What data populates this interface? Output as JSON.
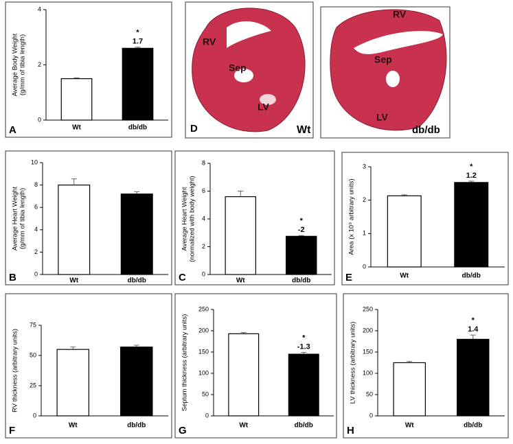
{
  "chart_data": [
    {
      "type": "bar",
      "panel": "A",
      "ylabel": [
        "Average Body Weight",
        "(g/mm of tibia length)"
      ],
      "categories": [
        "Wt",
        "db/db"
      ],
      "values": [
        1.5,
        2.6
      ],
      "errors": [
        0.03,
        0.04
      ],
      "colors": [
        "#ffffff",
        "#000000"
      ],
      "ylim": [
        0,
        4
      ],
      "yticks": [
        0,
        2,
        4
      ],
      "annotations": [
        "*",
        "1.7"
      ]
    },
    {
      "type": "bar",
      "panel": "B",
      "ylabel": [
        "Average Heart Weight",
        "(g/mm of tibia length)"
      ],
      "categories": [
        "Wt",
        "db/db"
      ],
      "values": [
        8.0,
        7.2
      ],
      "errors": [
        0.55,
        0.2
      ],
      "colors": [
        "#ffffff",
        "#000000"
      ],
      "ylim": [
        0,
        10
      ],
      "yticks": [
        0,
        2,
        4,
        6,
        8,
        10
      ],
      "annotations": []
    },
    {
      "type": "bar",
      "panel": "C",
      "ylabel": [
        "Average Heart Weight",
        "(normalized with body weight)"
      ],
      "categories": [
        "Wt",
        "db/db"
      ],
      "values": [
        5.6,
        2.75
      ],
      "errors": [
        0.4,
        0.05
      ],
      "colors": [
        "#ffffff",
        "#000000"
      ],
      "ylim": [
        0,
        8
      ],
      "yticks": [
        0,
        2,
        4,
        6,
        8
      ],
      "annotations": [
        "*",
        "-2"
      ]
    },
    {
      "type": "bar",
      "panel": "E",
      "ylabel": [
        "Area (x 10⁹ arbitrary units)"
      ],
      "categories": [
        "Wt",
        "db/db"
      ],
      "values": [
        2.13,
        2.53
      ],
      "errors": [
        0.03,
        0.04
      ],
      "colors": [
        "#ffffff",
        "#000000"
      ],
      "ylim": [
        0,
        3
      ],
      "yticks": [
        0,
        1,
        2,
        3
      ],
      "annotations": [
        "*",
        "1.2"
      ]
    },
    {
      "type": "bar",
      "panel": "F",
      "ylabel": [
        "RV thickness (arbitrary units)"
      ],
      "categories": [
        "Wt",
        "db/db"
      ],
      "values": [
        55,
        57
      ],
      "errors": [
        2,
        1.5
      ],
      "colors": [
        "#ffffff",
        "#000000"
      ],
      "ylim": [
        0,
        75
      ],
      "yticks": [
        0,
        25,
        50,
        75
      ],
      "annotations": []
    },
    {
      "type": "bar",
      "panel": "G",
      "ylabel": [
        "Septum thickness (arbitrary units)"
      ],
      "categories": [
        "Wt",
        "db/db"
      ],
      "values": [
        193,
        145
      ],
      "errors": [
        3,
        4
      ],
      "colors": [
        "#ffffff",
        "#000000"
      ],
      "ylim": [
        0,
        250
      ],
      "yticks": [
        0,
        50,
        100,
        150,
        200,
        250
      ],
      "annotations": [
        "*",
        "-1.3"
      ]
    },
    {
      "type": "bar",
      "panel": "H",
      "ylabel": [
        "LV thickness (arbitrary units)"
      ],
      "categories": [
        "Wt",
        "db/db"
      ],
      "values": [
        125,
        180
      ],
      "errors": [
        3,
        10
      ],
      "colors": [
        "#ffffff",
        "#000000"
      ],
      "ylim": [
        0,
        250
      ],
      "yticks": [
        0,
        50,
        100,
        150,
        200,
        250
      ],
      "annotations": [
        "*",
        "1.4"
      ]
    }
  ],
  "histology": {
    "panel": "D",
    "images": [
      {
        "labels": [
          "RV",
          "Sep",
          "LV"
        ],
        "caption": "Wt"
      },
      {
        "labels": [
          "RV",
          "Sep",
          "LV"
        ],
        "caption": "db/db"
      }
    ]
  }
}
